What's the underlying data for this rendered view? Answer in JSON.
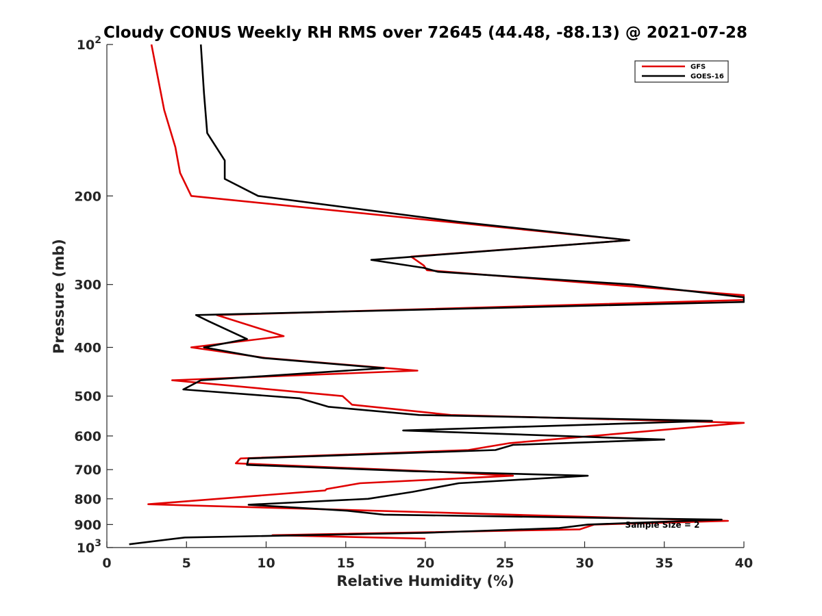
{
  "chart_data": {
    "type": "line",
    "title": "Cloudy CONUS Weekly RH RMS over 72645 (44.48, -88.13) @ 2021-07-28",
    "xlabel": "Relative Humidity (%)",
    "ylabel": "Pressure (mb)",
    "xlim": [
      0,
      40
    ],
    "ylim": [
      100,
      1000
    ],
    "y_scale": "log",
    "y_reversed": true,
    "grid": false,
    "legend_position": "top-right",
    "x_ticks": [
      "0",
      "5",
      "10",
      "15",
      "20",
      "25",
      "30",
      "35",
      "40"
    ],
    "y_ticks": [
      {
        "value": 100,
        "base": "10",
        "exp": "2"
      },
      {
        "value": 200,
        "label": "200"
      },
      {
        "value": 300,
        "label": "300"
      },
      {
        "value": 400,
        "label": "400"
      },
      {
        "value": 500,
        "label": "500"
      },
      {
        "value": 600,
        "label": "600"
      },
      {
        "value": 700,
        "label": "700"
      },
      {
        "value": 800,
        "label": "800"
      },
      {
        "value": 900,
        "label": "900"
      },
      {
        "value": 1000,
        "base": "10",
        "exp": "3"
      }
    ],
    "annotation": "Sample Size = 2",
    "series": [
      {
        "name": "GFS",
        "color": "#e00000",
        "x": [
          2.8,
          3.6,
          4.3,
          4.6,
          5.3,
          32.8,
          19.1,
          19.9,
          20.1,
          40.0,
          40.0,
          6.9,
          11.1,
          5.3,
          10.0,
          19.5,
          4.1,
          14.8,
          15.4,
          21.6,
          40.0,
          25.3,
          22.7,
          8.4,
          8.1,
          20.0,
          25.5,
          15.9,
          13.8,
          13.7,
          2.6,
          39.0,
          30.6,
          29.7,
          10.4,
          20.0
        ],
        "y": [
          100,
          135,
          160,
          180,
          200,
          245,
          264,
          275,
          281,
          315,
          322,
          345,
          380,
          400,
          420,
          445,
          465,
          500,
          520,
          545,
          565,
          620,
          640,
          665,
          680,
          705,
          720,
          745,
          765,
          770,
          820,
          885,
          900,
          920,
          945,
          960
        ]
      },
      {
        "name": "GOES-16",
        "color": "#000000",
        "x": [
          5.9,
          6.1,
          6.3,
          7.4,
          7.4,
          9.5,
          22.0,
          32.8,
          16.6,
          19.9,
          20.8,
          33.0,
          40.0,
          40.0,
          5.6,
          6.4,
          8.8,
          6.1,
          9.8,
          17.4,
          5.9,
          4.8,
          12.1,
          13.9,
          19.6,
          38.0,
          18.6,
          35.0,
          25.5,
          24.4,
          8.9,
          8.8,
          19.2,
          30.2,
          22.1,
          19.2,
          16.4,
          8.9,
          15.1,
          17.4,
          38.6,
          30.2,
          28.4,
          20.0,
          4.9,
          1.4
        ],
        "y": [
          100,
          125,
          150,
          170,
          185,
          200,
          225,
          245,
          268,
          278,
          283,
          300,
          318,
          325,
          345,
          355,
          385,
          400,
          420,
          440,
          465,
          485,
          505,
          525,
          545,
          560,
          585,
          610,
          625,
          640,
          665,
          685,
          705,
          720,
          745,
          775,
          800,
          822,
          845,
          860,
          880,
          900,
          915,
          935,
          955,
          985
        ]
      }
    ]
  }
}
